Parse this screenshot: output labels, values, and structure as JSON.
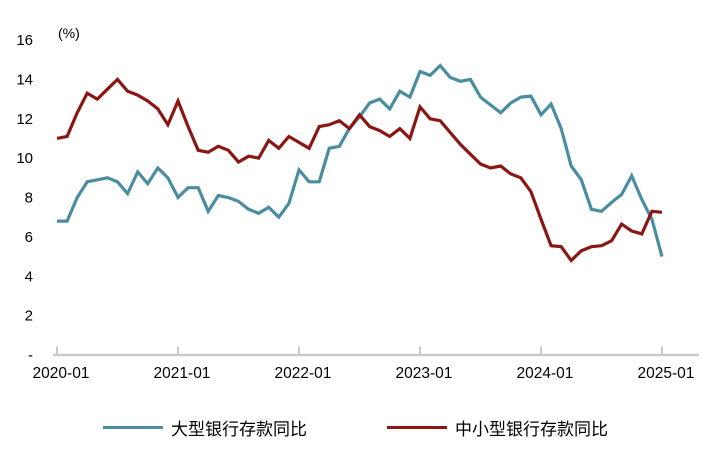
{
  "chart": {
    "unit_label": "(%)"
  },
  "chart_data": {
    "type": "line",
    "title": "",
    "ylabel": "(%)",
    "xlabel": "",
    "grid": false,
    "legend_position": "bottom",
    "ylim": [
      0,
      16
    ],
    "y_tick_values": [
      16,
      14,
      12,
      10,
      8,
      6,
      4,
      2,
      0
    ],
    "y_tick_labels": [
      "16",
      "14",
      "12",
      "10",
      "8",
      "6",
      "4",
      "2",
      "-"
    ],
    "x_tick_labels": [
      "2020-01",
      "2021-01",
      "2022-01",
      "2023-01",
      "2024-01",
      "2025-01"
    ],
    "x_tick_month_indices": [
      0,
      12,
      24,
      36,
      48,
      60
    ],
    "axis_color": "#C9C9C9",
    "text_color": "#000000",
    "x": [
      "2020-01",
      "2020-02",
      "2020-03",
      "2020-04",
      "2020-05",
      "2020-06",
      "2020-07",
      "2020-08",
      "2020-09",
      "2020-10",
      "2020-11",
      "2020-12",
      "2021-01",
      "2021-02",
      "2021-03",
      "2021-04",
      "2021-05",
      "2021-06",
      "2021-07",
      "2021-08",
      "2021-09",
      "2021-10",
      "2021-11",
      "2021-12",
      "2022-01",
      "2022-02",
      "2022-03",
      "2022-04",
      "2022-05",
      "2022-06",
      "2022-07",
      "2022-08",
      "2022-09",
      "2022-10",
      "2022-11",
      "2022-12",
      "2023-01",
      "2023-02",
      "2023-03",
      "2023-04",
      "2023-05",
      "2023-06",
      "2023-07",
      "2023-08",
      "2023-09",
      "2023-10",
      "2023-11",
      "2023-12",
      "2024-01",
      "2024-02",
      "2024-03",
      "2024-04",
      "2024-05",
      "2024-06",
      "2024-07",
      "2024-08",
      "2024-09",
      "2024-10",
      "2024-11",
      "2024-12",
      "2025-01"
    ],
    "series": [
      {
        "name": "大型银行存款同比",
        "color": "#4A8DA0",
        "values": [
          6.8,
          6.8,
          8.0,
          8.8,
          8.9,
          9.0,
          8.8,
          8.2,
          9.3,
          8.7,
          9.5,
          9.0,
          8.0,
          8.5,
          8.5,
          7.3,
          8.1,
          8.0,
          7.8,
          7.4,
          7.2,
          7.5,
          7.0,
          7.7,
          9.4,
          8.8,
          8.8,
          10.5,
          10.6,
          11.5,
          12.1,
          12.8,
          13.0,
          12.5,
          13.4,
          13.1,
          14.4,
          14.2,
          14.7,
          14.1,
          13.9,
          14.0,
          13.1,
          12.7,
          12.3,
          12.8,
          13.1,
          13.15,
          12.2,
          12.75,
          11.5,
          9.6,
          8.9,
          7.4,
          7.3,
          7.75,
          8.15,
          9.1,
          7.9,
          6.9,
          5.0
        ]
      },
      {
        "name": "中小型银行存款同比",
        "color": "#8A1713",
        "values": [
          11.0,
          11.1,
          12.3,
          13.3,
          13.0,
          13.5,
          14.0,
          13.4,
          13.2,
          12.9,
          12.5,
          11.7,
          12.9,
          11.6,
          10.4,
          10.3,
          10.6,
          10.4,
          9.8,
          10.1,
          10.0,
          10.9,
          10.5,
          11.1,
          10.8,
          10.5,
          11.6,
          11.7,
          11.9,
          11.5,
          12.2,
          11.6,
          11.4,
          11.1,
          11.5,
          11.0,
          12.6,
          12.0,
          11.9,
          11.3,
          10.7,
          10.2,
          9.7,
          9.5,
          9.6,
          9.2,
          9.0,
          8.3,
          6.9,
          5.55,
          5.5,
          4.8,
          5.3,
          5.5,
          5.55,
          5.8,
          6.65,
          6.3,
          6.15,
          7.3,
          7.25
        ]
      }
    ]
  }
}
